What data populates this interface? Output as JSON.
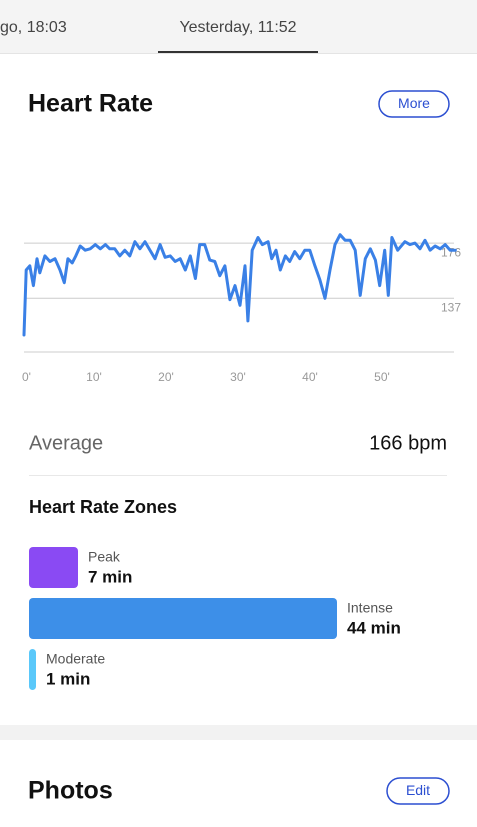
{
  "tabs": [
    "go, 18:03",
    "Yesterday, 11:52"
  ],
  "heart_rate": {
    "title": "Heart Rate",
    "button": "More"
  },
  "average": {
    "label": "Average",
    "value": "166 bpm"
  },
  "zones_title": "Heart Rate Zones",
  "photos": {
    "title": "Photos",
    "button": "Edit"
  },
  "chart_data": [
    {
      "type": "line",
      "color": "#3a80e6",
      "x": [
        0,
        0.3,
        0.8,
        1.3,
        1.8,
        2.2,
        2.9,
        3.6,
        4.3,
        5,
        5.6,
        6.1,
        6.7,
        7.2,
        7.8,
        8.5,
        9.2,
        9.9,
        10.6,
        11.3,
        11.9,
        12.6,
        13.3,
        14,
        14.7,
        15.4,
        16.1,
        16.8,
        17.5,
        18.2,
        18.9,
        19.6,
        20.3,
        21,
        21.7,
        22.4,
        23.1,
        23.8,
        24.4,
        25.1,
        25.8,
        26.5,
        27.2,
        27.9,
        28.6,
        29.3,
        30,
        30.7,
        31.1,
        31.7,
        32.5,
        33.1,
        33.9,
        34.4,
        35,
        35.6,
        36.3,
        36.9,
        37.6,
        38.3,
        39,
        39.7,
        40.4,
        41.1,
        41.8,
        42.5,
        43.2,
        43.9,
        44.6,
        45.3,
        46,
        46.7,
        47.4,
        48.1,
        48.8,
        49.4,
        50.1,
        50.6,
        51.1,
        51.9,
        52.9,
        53.6,
        54.3,
        55,
        55.7,
        56.4,
        57.1,
        57.8,
        58.5,
        59.2,
        59.9
      ],
      "values": [
        111,
        157,
        160,
        146,
        165,
        155,
        167,
        163,
        165,
        157,
        148,
        165,
        162,
        167,
        174,
        171,
        172,
        175,
        172,
        175,
        172,
        172,
        167,
        171,
        167,
        177,
        172,
        177,
        171,
        165,
        175,
        166,
        167,
        163,
        165,
        157,
        167,
        151,
        175,
        175,
        164,
        163,
        153,
        160,
        136,
        146,
        132,
        160,
        121,
        171,
        180,
        175,
        177,
        165,
        171,
        157,
        167,
        163,
        170,
        165,
        171,
        171,
        160,
        150,
        137,
        157,
        175,
        182,
        178,
        178,
        171,
        139,
        165,
        172,
        164,
        146,
        171,
        139,
        180,
        171,
        177,
        175,
        176,
        172,
        178,
        171,
        174,
        172,
        175,
        171,
        171
      ],
      "xlim": [
        0,
        60
      ],
      "xticks": [
        {
          "value": 0,
          "label": "0'"
        },
        {
          "value": 10,
          "label": "10'"
        },
        {
          "value": 20,
          "label": "20'"
        },
        {
          "value": 30,
          "label": "30'"
        },
        {
          "value": 40,
          "label": "40'"
        },
        {
          "value": 50,
          "label": "50'"
        }
      ],
      "ylim": [
        99,
        215
      ],
      "yticks": [
        137,
        176
      ],
      "grid": true
    },
    {
      "type": "hbar",
      "categories": [
        "Peak",
        "Intense",
        "Moderate"
      ],
      "values": [
        7,
        44,
        1
      ],
      "value_labels": [
        "7 min",
        "44 min",
        "1 min"
      ],
      "colors": [
        "#8a4af3",
        "#3d8fe8",
        "#5ac8fa"
      ],
      "xlim": [
        0,
        44
      ]
    }
  ]
}
